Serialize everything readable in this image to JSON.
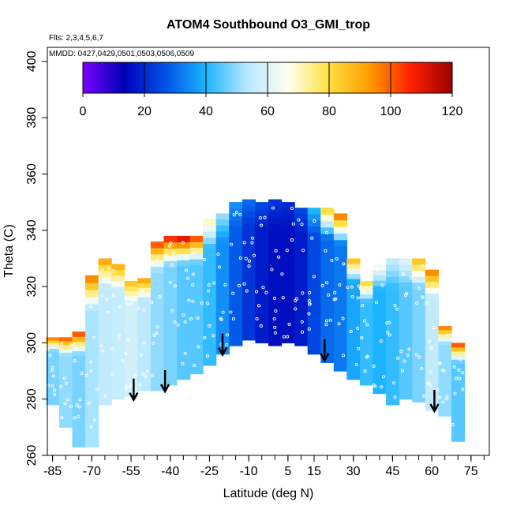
{
  "chart_data": {
    "type": "heatmap",
    "title": "ATOM4 Southbound O3_GMI_trop",
    "annotations": [
      "Flts: 2,3,4,5,6,7",
      "MMDD: 0427,0429,0501,0503,0506,0509"
    ],
    "xlabel": "Latitude (deg N)",
    "ylabel": "Theta (C)",
    "xlim": [
      -87,
      82
    ],
    "ylim": [
      260,
      405
    ],
    "xticks": [
      -85,
      -70,
      -55,
      -40,
      -25,
      -10,
      5,
      15,
      30,
      45,
      60,
      75
    ],
    "yticks": [
      260,
      280,
      300,
      320,
      340,
      360,
      380,
      400
    ],
    "grid": false,
    "colorbar": {
      "placement": "top-inset",
      "range": [
        0,
        120
      ],
      "ticks": [
        0,
        20,
        40,
        60,
        80,
        100,
        120
      ],
      "colors": [
        "#7a00ff",
        "#0000b8",
        "#0050e6",
        "#1cb4ff",
        "#b8e8ff",
        "#fffff0",
        "#ffe040",
        "#ff9a00",
        "#ff2000",
        "#9a0000"
      ]
    },
    "series": [
      {
        "values": [
          {
            "lat": -85,
            "ymin": 278,
            "ymax": 302,
            "o3": 48,
            "top_o3": 95
          },
          {
            "lat": -80,
            "ymin": 270,
            "ymax": 302,
            "o3": 50,
            "top_o3": 98
          },
          {
            "lat": -75,
            "ymin": 263,
            "ymax": 304,
            "o3": 48,
            "top_o3": 100
          },
          {
            "lat": -70,
            "ymin": 263,
            "ymax": 324,
            "o3": 52,
            "top_o3": 95
          },
          {
            "lat": -65,
            "ymin": 278,
            "ymax": 330,
            "o3": 55,
            "top_o3": 90
          },
          {
            "lat": -60,
            "ymin": 280,
            "ymax": 328,
            "o3": 56,
            "top_o3": 88
          },
          {
            "lat": -55,
            "ymin": 281,
            "ymax": 322,
            "o3": 58,
            "top_o3": 85
          },
          {
            "lat": -50,
            "ymin": 283,
            "ymax": 323,
            "o3": 54,
            "top_o3": 90
          },
          {
            "lat": -45,
            "ymin": 283,
            "ymax": 336,
            "o3": 50,
            "top_o3": 100
          },
          {
            "lat": -40,
            "ymin": 285,
            "ymax": 338,
            "o3": 48,
            "top_o3": 105
          },
          {
            "lat": -35,
            "ymin": 287,
            "ymax": 338,
            "o3": 45,
            "top_o3": 110
          },
          {
            "lat": -30,
            "ymin": 289,
            "ymax": 338,
            "o3": 45,
            "top_o3": 100
          },
          {
            "lat": -25,
            "ymin": 292,
            "ymax": 344,
            "o3": 42,
            "top_o3": 70
          },
          {
            "lat": -20,
            "ymin": 296,
            "ymax": 346,
            "o3": 35,
            "top_o3": 50
          },
          {
            "lat": -15,
            "ymin": 299,
            "ymax": 350,
            "o3": 28,
            "top_o3": 35
          },
          {
            "lat": -10,
            "ymin": 301,
            "ymax": 351,
            "o3": 22,
            "top_o3": 30
          },
          {
            "lat": -5,
            "ymin": 300,
            "ymax": 350,
            "o3": 18,
            "top_o3": 25
          },
          {
            "lat": 0,
            "ymin": 299,
            "ymax": 351,
            "o3": 16,
            "top_o3": 22
          },
          {
            "lat": 5,
            "ymin": 300,
            "ymax": 350,
            "o3": 16,
            "top_o3": 20
          },
          {
            "lat": 10,
            "ymin": 299,
            "ymax": 348,
            "o3": 18,
            "top_o3": 25
          },
          {
            "lat": 15,
            "ymin": 296,
            "ymax": 348,
            "o3": 25,
            "top_o3": 40
          },
          {
            "lat": 20,
            "ymin": 293,
            "ymax": 348,
            "o3": 30,
            "top_o3": 80
          },
          {
            "lat": 25,
            "ymin": 290,
            "ymax": 346,
            "o3": 32,
            "top_o3": 95
          },
          {
            "lat": 30,
            "ymin": 287,
            "ymax": 330,
            "o3": 38,
            "top_o3": 85
          },
          {
            "lat": 35,
            "ymin": 285,
            "ymax": 322,
            "o3": 42,
            "top_o3": 80
          },
          {
            "lat": 40,
            "ymin": 282,
            "ymax": 328,
            "o3": 40,
            "top_o3": 65
          },
          {
            "lat": 45,
            "ymin": 278,
            "ymax": 330,
            "o3": 42,
            "top_o3": 55
          },
          {
            "lat": 50,
            "ymin": 280,
            "ymax": 330,
            "o3": 45,
            "top_o3": 60
          },
          {
            "lat": 55,
            "ymin": 279,
            "ymax": 330,
            "o3": 48,
            "top_o3": 85
          },
          {
            "lat": 60,
            "ymin": 276,
            "ymax": 326,
            "o3": 55,
            "top_o3": 95
          },
          {
            "lat": 65,
            "ymin": 274,
            "ymax": 306,
            "o3": 50,
            "top_o3": 95
          },
          {
            "lat": 70,
            "ymin": 265,
            "ymax": 300,
            "o3": 45,
            "top_o3": 100
          }
        ]
      }
    ],
    "tropopause_arrows": [
      {
        "lat": -54,
        "theta": 280
      },
      {
        "lat": -42,
        "theta": 283
      },
      {
        "lat": -20,
        "theta": 296
      },
      {
        "lat": 19,
        "theta": 294
      },
      {
        "lat": 61,
        "theta": 276
      }
    ]
  }
}
